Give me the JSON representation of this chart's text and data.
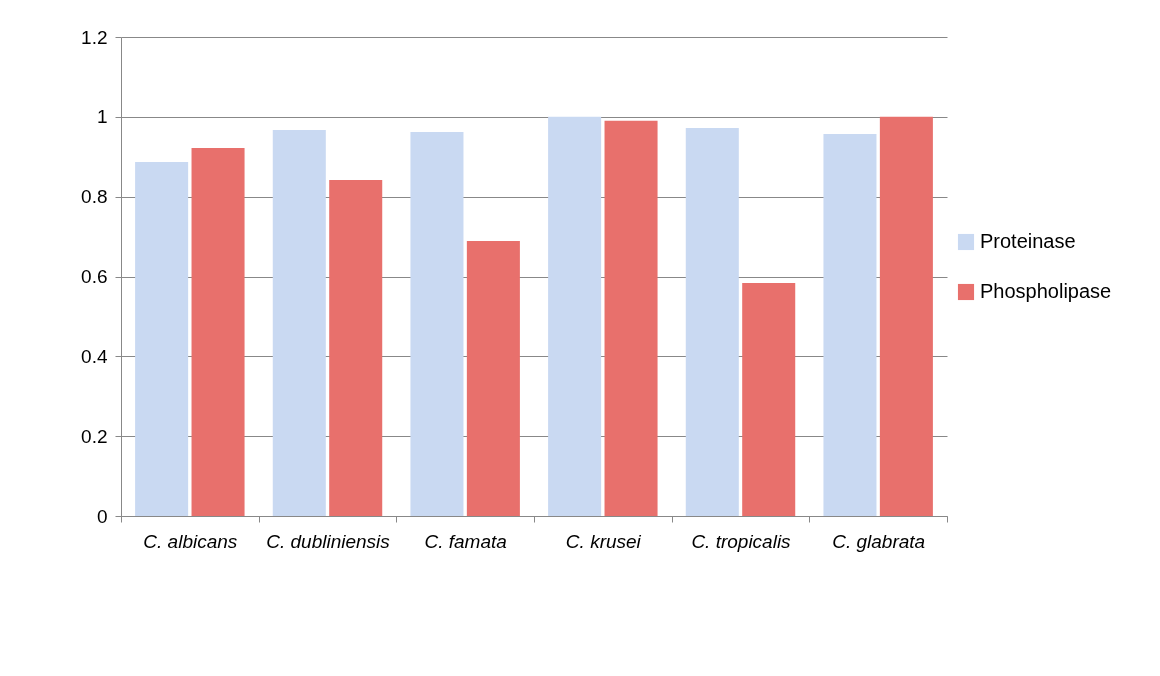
{
  "chart_data": {
    "type": "bar",
    "categories": [
      "C. albicans",
      "C. dubliniensis",
      "C. famata",
      "C. krusei",
      "C. tropicalis",
      "C. glabrata"
    ],
    "series": [
      {
        "name": "Proteinase",
        "color": "#c9d9f2",
        "values": [
          0.887,
          0.967,
          0.962,
          1.0,
          0.972,
          0.957
        ]
      },
      {
        "name": "Phospholipase",
        "color": "#e8706c",
        "values": [
          0.922,
          0.842,
          0.689,
          0.99,
          0.584,
          1.0
        ]
      }
    ],
    "ylim": [
      0,
      1.2
    ],
    "yticks": [
      0,
      0.2,
      0.4,
      0.6,
      0.8,
      1,
      1.2
    ],
    "grid": "y",
    "legend": "right"
  }
}
